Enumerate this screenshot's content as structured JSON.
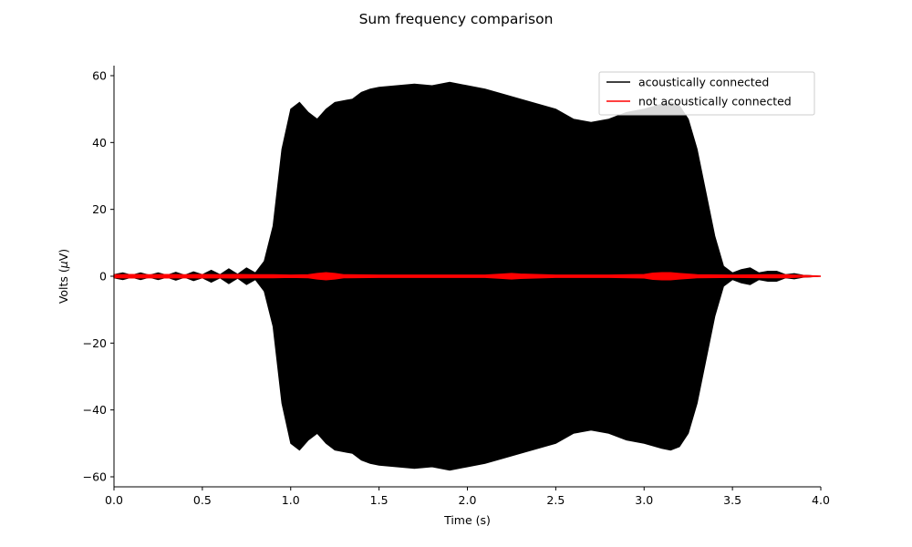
{
  "chart_data": {
    "type": "line",
    "title": "Sum frequency comparison",
    "xlabel": "Time (s)",
    "ylabel_main": "Volts (",
    "ylabel_mu": "μ",
    "ylabel_end": "V)",
    "xlim": [
      0,
      4
    ],
    "ylim": [
      -63,
      63
    ],
    "x_ticks": [
      0.0,
      0.5,
      1.0,
      1.5,
      2.0,
      2.5,
      3.0,
      3.5,
      4.0
    ],
    "x_tick_labels": [
      "0.0",
      "0.5",
      "1.0",
      "1.5",
      "2.0",
      "2.5",
      "3.0",
      "3.5",
      "4.0"
    ],
    "y_ticks": [
      -60,
      -40,
      -20,
      0,
      20,
      40,
      60
    ],
    "y_tick_labels": [
      "−60",
      "−40",
      "−20",
      "0",
      "20",
      "40",
      "60"
    ],
    "grid": false,
    "legend_position": "top-right",
    "series": [
      {
        "name": "acoustically connected",
        "color": "#000000",
        "envelope": {
          "x": [
            0.0,
            0.05,
            0.1,
            0.15,
            0.2,
            0.25,
            0.3,
            0.35,
            0.4,
            0.45,
            0.5,
            0.55,
            0.6,
            0.65,
            0.7,
            0.75,
            0.8,
            0.85,
            0.9,
            0.95,
            1.0,
            1.05,
            1.1,
            1.15,
            1.2,
            1.25,
            1.3,
            1.35,
            1.4,
            1.45,
            1.5,
            1.6,
            1.7,
            1.8,
            1.9,
            2.0,
            2.1,
            2.2,
            2.3,
            2.4,
            2.5,
            2.6,
            2.7,
            2.8,
            2.9,
            3.0,
            3.1,
            3.15,
            3.2,
            3.25,
            3.3,
            3.35,
            3.4,
            3.45,
            3.5,
            3.55,
            3.6,
            3.65,
            3.7,
            3.75,
            3.8,
            3.85,
            3.9,
            4.0
          ],
          "amplitude": [
            0.5,
            1.0,
            0.3,
            1.0,
            0.3,
            1.0,
            0.3,
            1.2,
            0.3,
            1.3,
            0.5,
            1.8,
            0.5,
            2.2,
            0.6,
            2.5,
            1.0,
            4.5,
            15.0,
            38.0,
            50.0,
            52.0,
            49.0,
            47.0,
            50.0,
            52.0,
            52.5,
            53.0,
            55.0,
            56.0,
            56.5,
            57.0,
            57.5,
            57.0,
            58.0,
            57.0,
            56.0,
            54.5,
            53.0,
            51.5,
            50.0,
            47.0,
            46.0,
            47.0,
            49.0,
            50.0,
            51.5,
            52.0,
            51.0,
            47.0,
            38.0,
            25.0,
            12.0,
            3.0,
            1.0,
            2.0,
            2.5,
            1.0,
            1.5,
            1.5,
            0.5,
            0.8,
            0.3,
            0.0
          ]
        }
      },
      {
        "name": "not acoustically connected",
        "color": "#ff0000",
        "envelope": {
          "x": [
            0.0,
            0.1,
            0.2,
            0.3,
            0.4,
            0.5,
            0.6,
            0.7,
            0.8,
            0.9,
            1.0,
            1.1,
            1.15,
            1.2,
            1.25,
            1.3,
            1.5,
            1.8,
            2.1,
            2.2,
            2.25,
            2.3,
            2.5,
            2.8,
            3.0,
            3.05,
            3.1,
            3.15,
            3.2,
            3.3,
            3.5,
            3.7,
            3.8,
            4.0
          ],
          "amplitude": [
            0.4,
            0.5,
            0.4,
            0.5,
            0.4,
            0.5,
            0.4,
            0.5,
            0.4,
            0.4,
            0.3,
            0.4,
            0.8,
            1.0,
            0.8,
            0.4,
            0.3,
            0.3,
            0.3,
            0.6,
            0.8,
            0.6,
            0.3,
            0.3,
            0.5,
            0.9,
            1.0,
            1.0,
            0.8,
            0.4,
            0.3,
            0.4,
            0.4,
            0.0
          ]
        }
      }
    ]
  }
}
